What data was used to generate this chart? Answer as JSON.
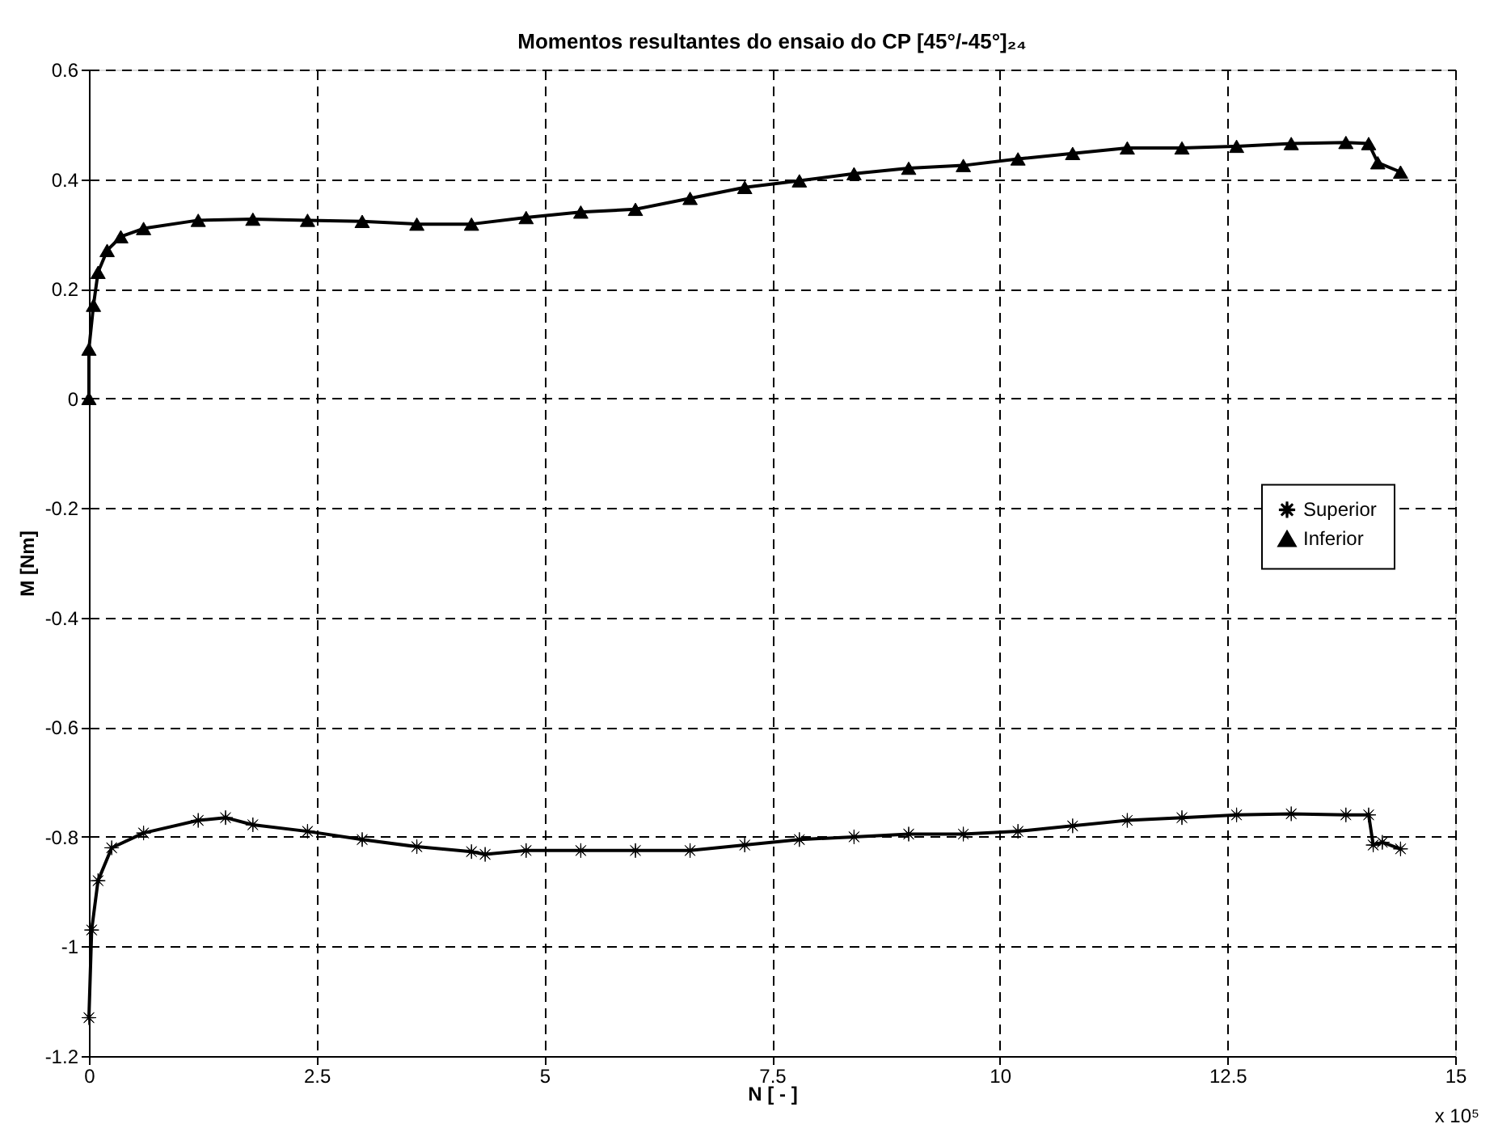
{
  "chart_data": {
    "type": "line",
    "title": "Momentos resultantes do ensaio do CP [45°/-45°]₂₄",
    "xlabel": "N [ - ]",
    "ylabel": "M [Nm]",
    "xlim": [
      0,
      15
    ],
    "xticks": [
      0,
      2.5,
      5,
      7.5,
      10,
      12.5,
      15
    ],
    "ylim": [
      -1.2,
      0.6
    ],
    "yticks": [
      -1.2,
      -1,
      -0.8,
      -0.6,
      -0.4,
      -0.2,
      0,
      0.2,
      0.4,
      0.6
    ],
    "grid": true,
    "legend": "right",
    "line_style": "solid",
    "annotations": [
      "x 10⁵"
    ],
    "series": [
      {
        "name": "Superior",
        "color": "#000000",
        "marker": "star",
        "x": [
          0,
          0.03,
          0.1,
          0.25,
          0.6,
          1.2,
          1.5,
          1.8,
          2.4,
          3.0,
          3.6,
          4.2,
          4.35,
          4.8,
          5.4,
          6.0,
          6.6,
          7.2,
          7.8,
          8.4,
          9.0,
          9.6,
          10.2,
          10.8,
          11.4,
          12.0,
          12.6,
          13.2,
          13.8,
          14.05,
          14.1,
          14.2,
          14.4
        ],
        "values": [
          -1.13,
          -0.97,
          -0.88,
          -0.82,
          -0.793,
          -0.77,
          -0.765,
          -0.778,
          -0.79,
          -0.805,
          -0.818,
          -0.827,
          -0.832,
          -0.825,
          -0.825,
          -0.825,
          -0.825,
          -0.815,
          -0.805,
          -0.8,
          -0.795,
          -0.795,
          -0.79,
          -0.78,
          -0.77,
          -0.765,
          -0.76,
          -0.758,
          -0.76,
          -0.76,
          -0.815,
          -0.81,
          -0.822
        ]
      },
      {
        "name": "Inferior",
        "color": "#000000",
        "marker": "triangle",
        "x": [
          0,
          0,
          0.05,
          0.1,
          0.2,
          0.35,
          0.6,
          1.2,
          1.8,
          2.4,
          3.0,
          3.6,
          4.2,
          4.8,
          5.4,
          6.0,
          6.6,
          7.2,
          7.8,
          8.4,
          9.0,
          9.6,
          10.2,
          10.8,
          11.4,
          12.0,
          12.6,
          13.2,
          13.8,
          14.05,
          14.15,
          14.4
        ],
        "values": [
          0,
          0.09,
          0.17,
          0.23,
          0.27,
          0.295,
          0.31,
          0.325,
          0.327,
          0.325,
          0.323,
          0.318,
          0.318,
          0.33,
          0.34,
          0.345,
          0.365,
          0.385,
          0.397,
          0.41,
          0.42,
          0.425,
          0.437,
          0.447,
          0.457,
          0.457,
          0.46,
          0.465,
          0.467,
          0.465,
          0.43,
          0.413
        ]
      }
    ]
  }
}
